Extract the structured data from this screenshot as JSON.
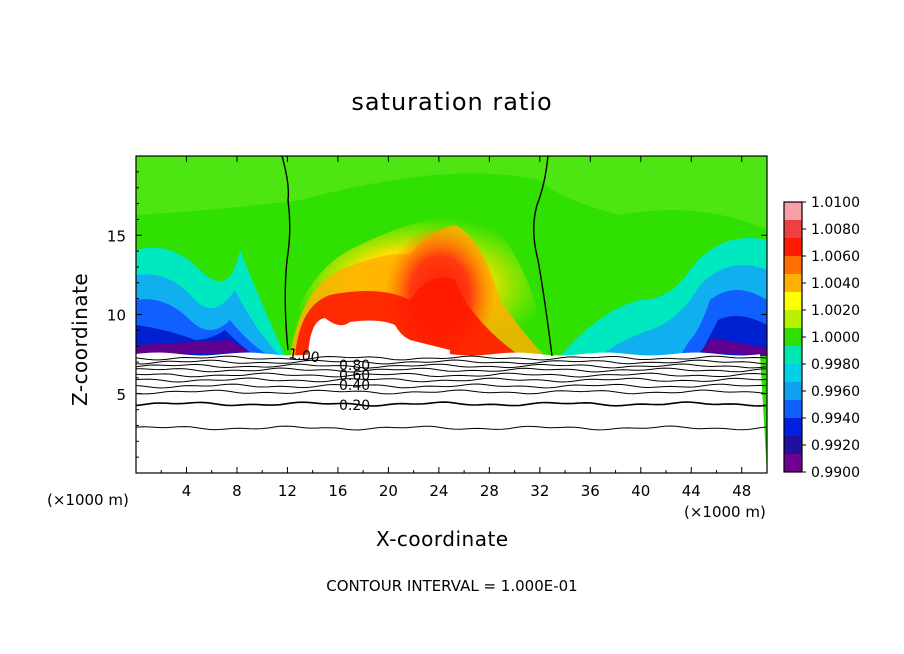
{
  "chart_data": {
    "type": "heatmap",
    "title": "saturation ratio",
    "xlabel": "X-coordinate",
    "ylabel": "Z-coordinate",
    "x_unit": "(×1000 m)",
    "y_unit": "(×1000 m)",
    "xlim": [
      0,
      50
    ],
    "ylim": [
      0,
      20
    ],
    "x_ticks": [
      "4",
      "8",
      "12",
      "16",
      "20",
      "24",
      "28",
      "32",
      "36",
      "40",
      "44",
      "48"
    ],
    "y_ticks": [
      "5",
      "10",
      "15"
    ],
    "colorbar": {
      "levels": [
        "1.0100",
        "1.0080",
        "1.0060",
        "1.0040",
        "1.0020",
        "1.0000",
        "0.9980",
        "0.9960",
        "0.9940",
        "0.9920",
        "0.9900"
      ],
      "colors": [
        "#f4a0a6",
        "#ee4040",
        "#ff1a00",
        "#ff7000",
        "#ffb000",
        "#ffff00",
        "#b8f000",
        "#30e000",
        "#00e8b0",
        "#00d0e8",
        "#10a0f0",
        "#1060ff",
        "#0020e0",
        "#2010a0",
        "#700090"
      ]
    },
    "contour_labels": [
      "1.00",
      "0.80",
      "0.60",
      "0.40",
      "0.20"
    ],
    "footnote": "CONTOUR INTERVAL = 1.000E-01"
  }
}
